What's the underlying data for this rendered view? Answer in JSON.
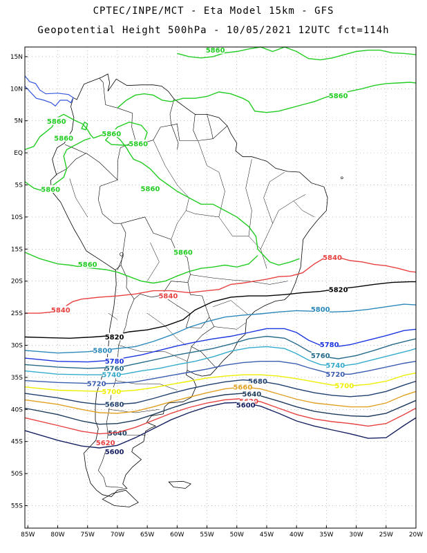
{
  "header": {
    "line1": "CPTEC/INPE/MCT -  Eta Model 15km - GFS",
    "line2": "Geopotential Height 500hPa - 10/05/2021 12UTC fct=114h"
  },
  "axes": {
    "lat_labels": [
      "15N",
      "10N",
      "5N",
      "EQ",
      "5S",
      "10S",
      "15S",
      "20S",
      "25S",
      "30S",
      "35S",
      "40S",
      "45S",
      "50S",
      "55S"
    ],
    "lat_values": [
      15,
      10,
      5,
      0,
      -5,
      -10,
      -15,
      -20,
      -25,
      -30,
      -35,
      -40,
      -45,
      -50,
      -55
    ],
    "lon_labels": [
      "85W",
      "80W",
      "75W",
      "70W",
      "65W",
      "60W",
      "55W",
      "50W",
      "45W",
      "40W",
      "35W",
      "30W",
      "25W",
      "20W"
    ],
    "lon_values": [
      -85,
      -80,
      -75,
      -70,
      -65,
      -60,
      -55,
      -50,
      -45,
      -40,
      -35,
      -30,
      -25,
      -20
    ],
    "lon_range": [
      -85.5,
      -20
    ],
    "lat_range": [
      -58.5,
      16.5
    ]
  },
  "contours": [
    {
      "level": 5860,
      "label": "5860",
      "color": "#22cc22"
    },
    {
      "level": 5840,
      "label": "5840",
      "color": "#e84040"
    },
    {
      "level": 5820,
      "label": "5820",
      "color": "#000000"
    },
    {
      "level": 5800,
      "label": "5800",
      "color": "#2a88bb"
    },
    {
      "level": 5780,
      "label": "5780",
      "color": "#1a35e0"
    },
    {
      "level": 5760,
      "label": "5760",
      "color": "#246a8a"
    },
    {
      "level": 5740,
      "label": "5740",
      "color": "#33aacc"
    },
    {
      "level": 5720,
      "label": "5720",
      "color": "#3a5cb0"
    },
    {
      "level": 5700,
      "label": "5700",
      "color": "#eeee00"
    },
    {
      "level": 5680,
      "label": "5680",
      "color": "#1e3f6e"
    },
    {
      "level": 5660,
      "label": "5660",
      "color": "#e0a020"
    },
    {
      "level": 5640,
      "label": "5640",
      "color": "#1c3a5c"
    },
    {
      "level": 5620,
      "label": "5620",
      "color": "#e84040"
    },
    {
      "level": 5600,
      "label": "5600",
      "color": "#162060"
    }
  ],
  "misc_colors": {
    "coast": "#3355dd",
    "grid": "#999999"
  }
}
